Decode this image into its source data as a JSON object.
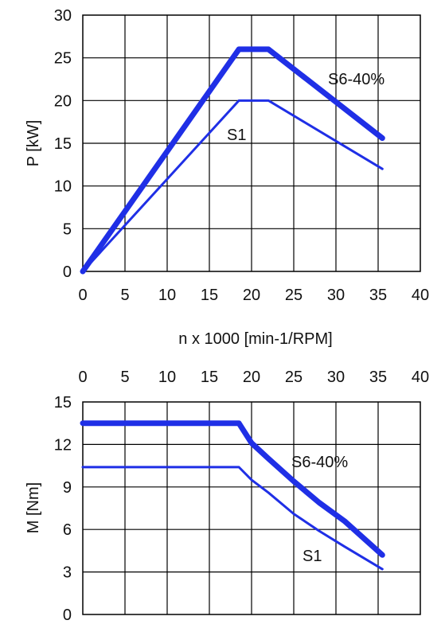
{
  "colors": {
    "curve": "#1f2fe6",
    "grid": "#000000",
    "background": "#ffffff"
  },
  "shared_xlabel": "n x 1000 [min-1/RPM]",
  "chart_data": [
    {
      "type": "line",
      "ylabel": "P [kW]",
      "xlim": [
        0,
        40
      ],
      "ylim": [
        0,
        30
      ],
      "xticks": [
        "0",
        "5",
        "10",
        "15",
        "20",
        "25",
        "30",
        "35",
        "40"
      ],
      "yticks": [
        "0",
        "5",
        "10",
        "15",
        "20",
        "25",
        "30"
      ],
      "grid": true,
      "series": [
        {
          "name": "S6-40%",
          "x": [
            0,
            18.5,
            22,
            35.5
          ],
          "values": [
            0,
            26,
            26,
            15.6
          ]
        },
        {
          "name": "S1",
          "x": [
            0,
            18.5,
            22,
            35.5
          ],
          "values": [
            0,
            20,
            20,
            12
          ]
        }
      ]
    },
    {
      "type": "line",
      "ylabel": "M [Nm]",
      "xlim": [
        0,
        40
      ],
      "ylim": [
        0,
        15
      ],
      "xticks": [
        "0",
        "5",
        "10",
        "15",
        "20",
        "25",
        "30",
        "35",
        "40"
      ],
      "yticks": [
        "0",
        "3",
        "6",
        "9",
        "12",
        "15"
      ],
      "grid": true,
      "series": [
        {
          "name": "S6-40%",
          "x": [
            0,
            18.5,
            20,
            22,
            25,
            28,
            31,
            35.5
          ],
          "values": [
            13.5,
            13.5,
            12.1,
            11,
            9.4,
            7.9,
            6.6,
            4.2
          ]
        },
        {
          "name": "S1",
          "x": [
            0,
            18.5,
            20,
            22,
            25,
            28,
            31,
            35.5
          ],
          "values": [
            10.4,
            10.4,
            9.5,
            8.6,
            7.1,
            5.9,
            4.8,
            3.2
          ]
        }
      ]
    }
  ]
}
